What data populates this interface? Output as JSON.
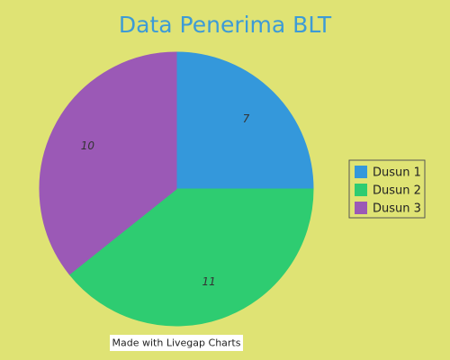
{
  "chart_data": {
    "type": "pie",
    "title": "Data Penerima BLT",
    "categories": [
      "Dusun 1",
      "Dusun 2",
      "Dusun 3"
    ],
    "values": [
      7,
      11,
      10
    ],
    "colors": [
      "#3498db",
      "#2ecc71",
      "#9b59b6"
    ],
    "legend": "right",
    "credit": "Made with Livegap Charts"
  }
}
